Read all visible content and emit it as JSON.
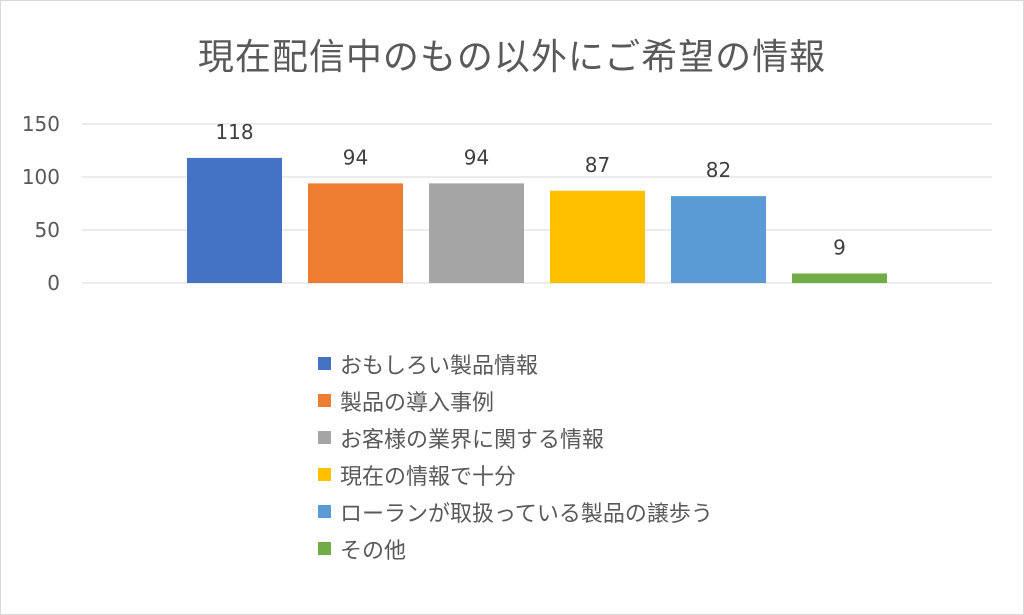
{
  "chart_data": {
    "type": "bar",
    "title": "現在配信中のもの以外にご希望の情報",
    "ylim": [
      0,
      150
    ],
    "yticks": [
      0,
      50,
      100,
      150
    ],
    "grid": true,
    "legend_position": "bottom",
    "series": [
      {
        "name": "おもしろい製品情報",
        "value": 118,
        "label": "118",
        "color": "#4472C4"
      },
      {
        "name": "製品の導入事例",
        "value": 94,
        "label": "94",
        "color": "#ED7D31"
      },
      {
        "name": "お客様の業界に関する情報",
        "value": 94,
        "label": "94",
        "color": "#A5A5A5"
      },
      {
        "name": "現在の情報で十分",
        "value": 87,
        "label": "87",
        "color": "#FFC000"
      },
      {
        "name": "ローランが取扱っている製品の譲歩う",
        "value": 82,
        "label": "82",
        "color": "#5B9BD5"
      },
      {
        "name": "その他",
        "value": 9,
        "label": "9",
        "color": "#70AD47"
      }
    ]
  }
}
